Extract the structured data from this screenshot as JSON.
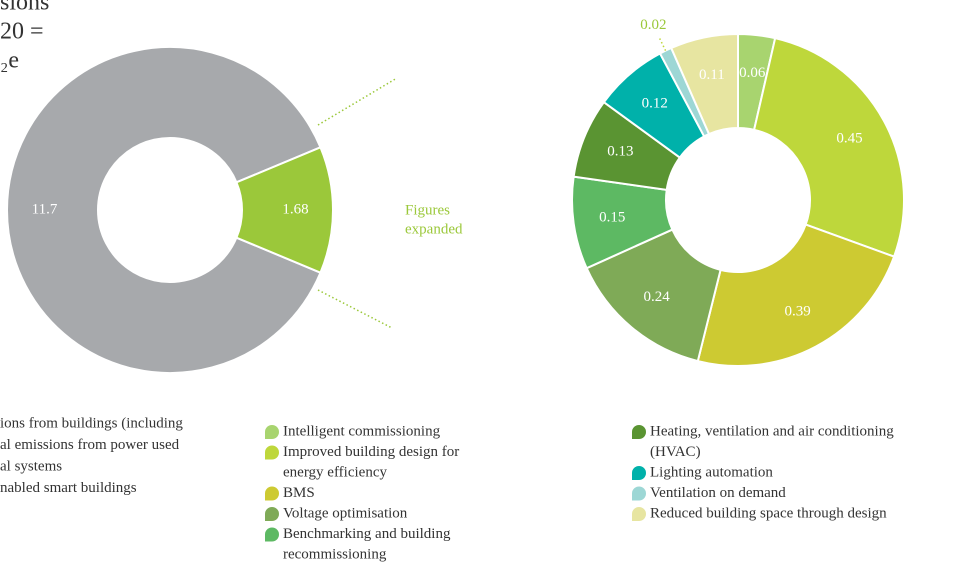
{
  "chart_data": [
    {
      "type": "pie",
      "title_lines": [
        "sions",
        "20 =",
        "₂e"
      ],
      "values": [
        11.7,
        1.68
      ],
      "colors": [
        "#a7a9ac",
        "#9bc83a"
      ],
      "categories": [
        [
          "ions from buildings (including",
          "al emissions from power used",
          "al systems"
        ],
        [
          "nabled smart buildings"
        ]
      ],
      "annotation": [
        "Figures",
        "expanded"
      ]
    },
    {
      "type": "pie",
      "values": [
        0.06,
        0.45,
        0.39,
        0.24,
        0.15,
        0.13,
        0.12,
        0.02,
        0.11
      ],
      "colors": [
        "#a8d46f",
        "#bed73b",
        "#cdca32",
        "#7faa57",
        "#5db963",
        "#5a9432",
        "#00b1aa",
        "#9dd7d5",
        "#e7e5a1"
      ],
      "categories": [
        [
          "Intelligent commissioning"
        ],
        [
          "Improved building design for",
          "energy efficiency"
        ],
        [
          "BMS"
        ],
        [
          "Voltage optimisation"
        ],
        [
          "Benchmarking and building",
          "recommissioning"
        ],
        [
          "Heating, ventilation and air conditioning",
          "(HVAC)"
        ],
        [
          "Lighting automation"
        ],
        [
          "Ventilation on demand"
        ],
        [
          "Reduced building space through design"
        ]
      ]
    }
  ]
}
